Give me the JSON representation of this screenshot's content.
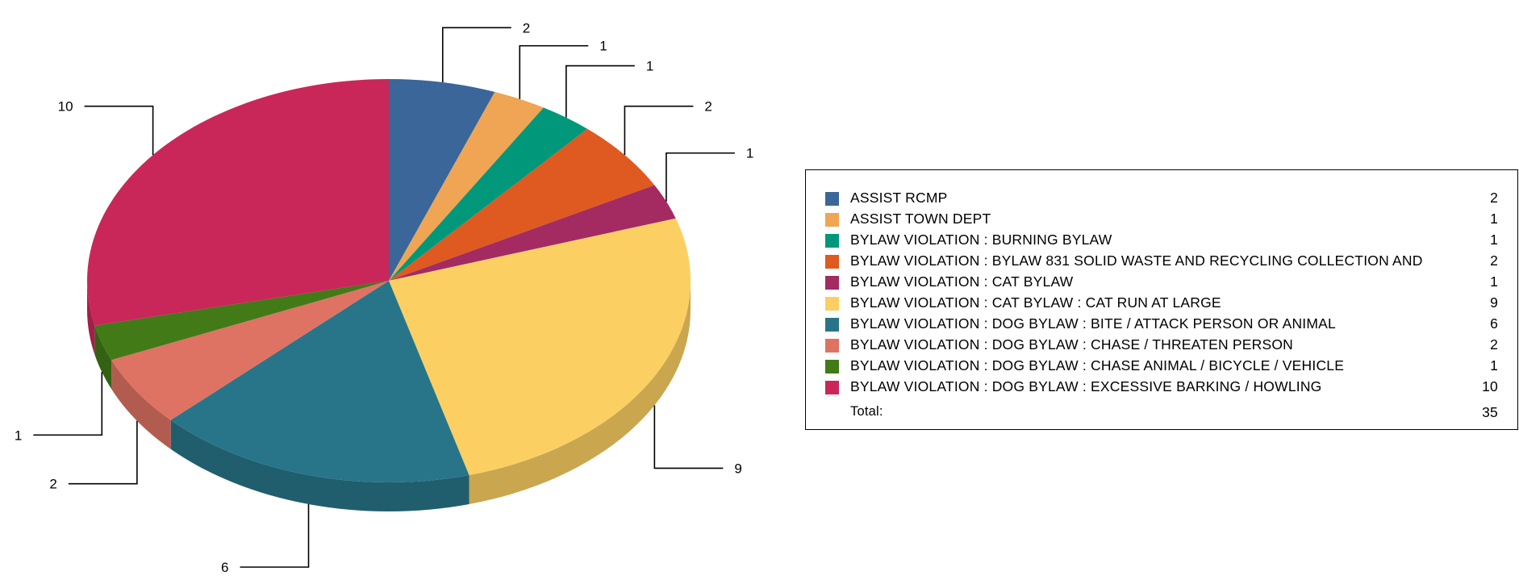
{
  "chart_data": {
    "type": "pie",
    "style": "3d",
    "categories": [
      "ASSIST RCMP",
      "ASSIST TOWN DEPT",
      "BYLAW VIOLATION : BURNING BYLAW",
      "BYLAW VIOLATION : BYLAW 831 SOLID WASTE AND RECYCLING COLLECTION AND",
      "BYLAW VIOLATION : CAT BYLAW",
      "BYLAW VIOLATION : CAT BYLAW : CAT RUN AT LARGE",
      "BYLAW VIOLATION : DOG BYLAW  : BITE / ATTACK PERSON OR ANIMAL",
      "BYLAW VIOLATION : DOG BYLAW  : CHASE / THREATEN PERSON",
      "BYLAW VIOLATION : DOG BYLAW  : CHASE ANIMAL / BICYCLE / VEHICLE",
      "BYLAW VIOLATION : DOG BYLAW  : EXCESSIVE BARKING / HOWLING"
    ],
    "values": [
      2,
      1,
      1,
      2,
      1,
      9,
      6,
      2,
      1,
      10
    ],
    "colors": [
      "#3A6699",
      "#EFA553",
      "#00977A",
      "#DE5A20",
      "#A32B62",
      "#FCCF63",
      "#28758A",
      "#DE7363",
      "#427A17",
      "#C9275A"
    ],
    "data_labels": [
      "2",
      "1",
      "1",
      "2",
      "1",
      "9",
      "6",
      "2",
      "1",
      "10"
    ],
    "legend_position": "right",
    "total_label": "Total:",
    "total_value": "35"
  }
}
